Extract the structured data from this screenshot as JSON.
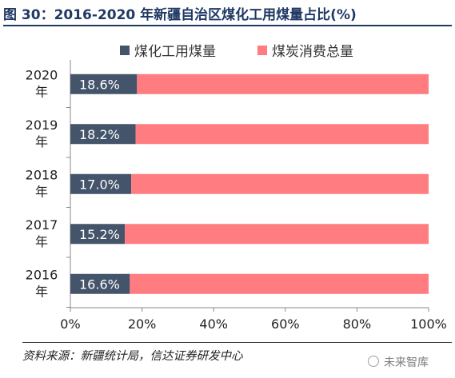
{
  "title": "图 30：2016-2020 年新疆自治区煤化工用煤量占比(%)",
  "source": "资料来源：新疆统计局，信达证券研发中心",
  "watermark": "未来智库",
  "chart_data": {
    "type": "bar",
    "orientation": "horizontal",
    "stacked": true,
    "percent_stacked": true,
    "categories": [
      "2020\n年",
      "2019\n年",
      "2018\n年",
      "2017\n年",
      "2016\n年"
    ],
    "series": [
      {
        "name": "煤化工用煤量",
        "values": [
          18.6,
          18.2,
          17.0,
          15.2,
          16.6
        ],
        "labels": [
          "18.6%",
          "18.2%",
          "17.0%",
          "15.2%",
          "16.6%"
        ],
        "color": "#44546a"
      },
      {
        "name": "煤炭消费总量",
        "values": [
          81.4,
          81.8,
          83.0,
          84.8,
          83.4
        ],
        "color": "#ff7c80"
      }
    ],
    "xlim": [
      0,
      100
    ],
    "xticks": [
      "0%",
      "20%",
      "40%",
      "60%",
      "80%",
      "100%"
    ],
    "legend_position": "top",
    "grid": false
  }
}
